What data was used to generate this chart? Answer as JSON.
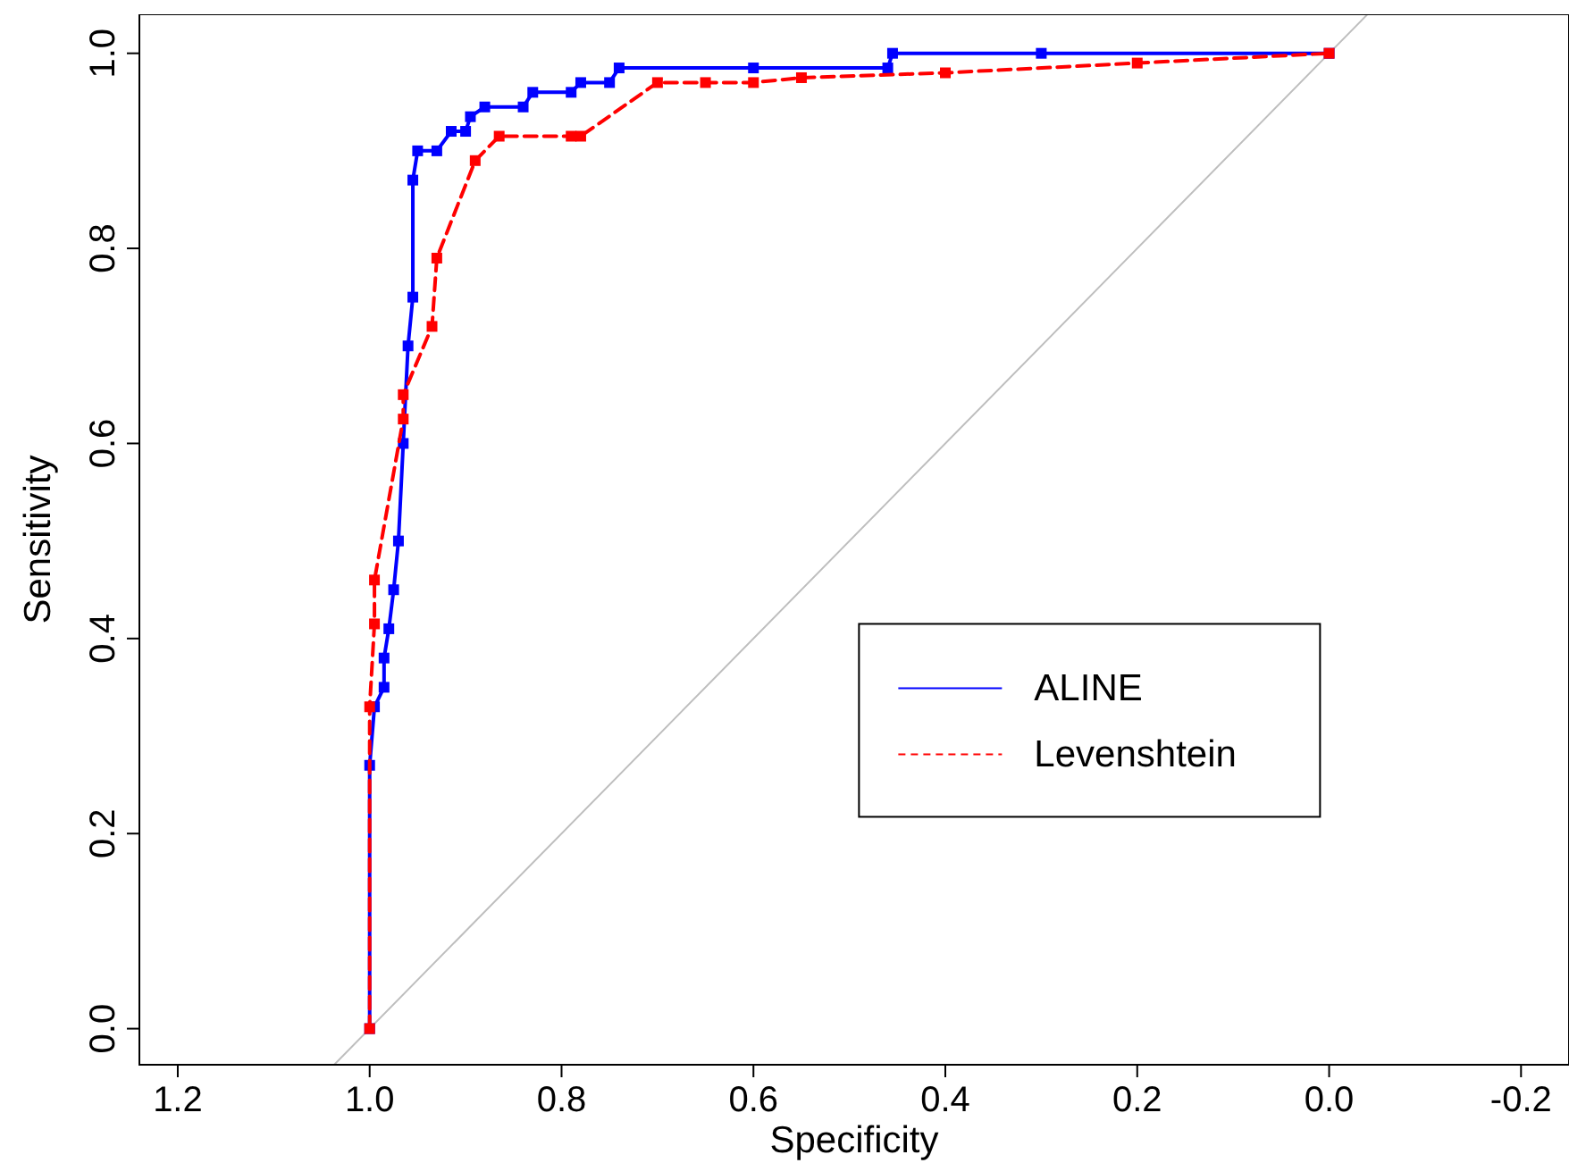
{
  "chart_data": {
    "type": "line",
    "xlabel": "Specificity",
    "ylabel": "Sensitivity",
    "xlim": [
      1.24,
      -0.25
    ],
    "ylim": [
      -0.037,
      1.04
    ],
    "xticks": [
      1.2,
      {
        "value": 1,
        "label": "1.0"
      },
      0.8,
      0.6,
      0.4,
      0.2,
      {
        "value": 0,
        "label": "0.0"
      },
      -0.2
    ],
    "yticks": [
      {
        "value": 0,
        "label": "0.0"
      },
      0.2,
      0.4,
      0.6,
      0.8,
      {
        "value": 1,
        "label": "1.0"
      }
    ],
    "grid": false,
    "legend": "right",
    "marker": "square",
    "series": [
      {
        "name": "ALINE",
        "color": "#0000ff",
        "line_style": "solid",
        "x": [
          1,
          1,
          0.995,
          0.985,
          0.985,
          0.98,
          0.975,
          0.97,
          0.965,
          0.96,
          0.955,
          0.955,
          0.95,
          0.93,
          0.915,
          0.9,
          0.895,
          0.88,
          0.84,
          0.83,
          0.79,
          0.78,
          0.75,
          0.74,
          0.6,
          0.46,
          0.455,
          0.3,
          0
        ],
        "values": [
          0,
          0.27,
          0.33,
          0.35,
          0.38,
          0.41,
          0.45,
          0.5,
          0.6,
          0.7,
          0.75,
          0.87,
          0.9,
          0.9,
          0.92,
          0.92,
          0.935,
          0.945,
          0.945,
          0.96,
          0.96,
          0.97,
          0.97,
          0.985,
          0.985,
          0.985,
          1,
          1,
          1
        ]
      },
      {
        "name": "Levenshtein",
        "color": "#ff0000",
        "line_style": "dashed",
        "x": [
          1,
          1,
          0.995,
          0.995,
          0.965,
          0.965,
          0.935,
          0.93,
          0.89,
          0.865,
          0.79,
          0.78,
          0.7,
          0.65,
          0.6,
          0.55,
          0.4,
          0.2,
          0
        ],
        "values": [
          0,
          0.33,
          0.415,
          0.46,
          0.625,
          0.65,
          0.72,
          0.79,
          0.89,
          0.915,
          0.915,
          0.915,
          0.97,
          0.97,
          0.97,
          0.975,
          0.98,
          0.99,
          1
        ]
      },
      {
        "color": "#bebebe",
        "line_style": "solid",
        "marker": "none",
        "x": [
          1.037,
          -0.04
        ],
        "values": [
          -0.037,
          1.04
        ]
      }
    ]
  }
}
